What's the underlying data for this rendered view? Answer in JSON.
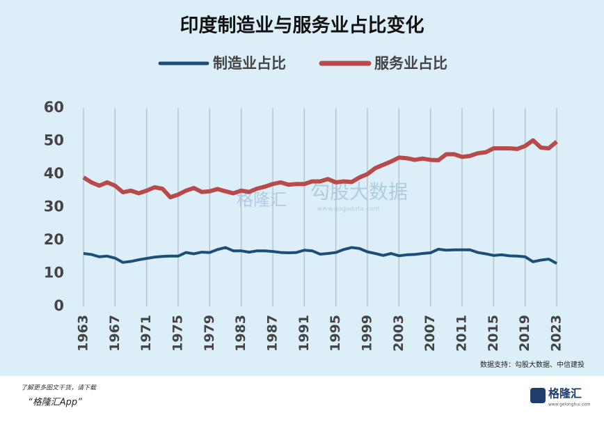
{
  "chart_data": {
    "type": "line",
    "title": "印度制造业与服务业占比变化",
    "x": [
      1963,
      1964,
      1965,
      1966,
      1967,
      1968,
      1969,
      1970,
      1971,
      1972,
      1973,
      1974,
      1975,
      1976,
      1977,
      1978,
      1979,
      1980,
      1981,
      1982,
      1983,
      1984,
      1985,
      1986,
      1987,
      1988,
      1989,
      1990,
      1991,
      1992,
      1993,
      1994,
      1995,
      1996,
      1997,
      1998,
      1999,
      2000,
      2001,
      2002,
      2003,
      2004,
      2005,
      2006,
      2007,
      2008,
      2009,
      2010,
      2011,
      2012,
      2013,
      2014,
      2015,
      2016,
      2017,
      2018,
      2019,
      2020,
      2021,
      2022,
      2023
    ],
    "series": [
      {
        "name": "制造业占比",
        "color": "#1b4f7a",
        "values": [
          16.0,
          15.7,
          15.0,
          15.2,
          14.6,
          13.3,
          13.6,
          14.1,
          14.5,
          14.9,
          15.1,
          15.2,
          15.2,
          16.3,
          15.9,
          16.4,
          16.3,
          17.2,
          17.8,
          16.8,
          16.8,
          16.4,
          16.8,
          16.8,
          16.6,
          16.3,
          16.2,
          16.3,
          17.0,
          16.8,
          15.8,
          16.0,
          16.3,
          17.2,
          17.8,
          17.5,
          16.5,
          16.0,
          15.4,
          16.0,
          15.3,
          15.6,
          15.7,
          16.0,
          16.2,
          17.3,
          17.0,
          17.1,
          17.1,
          17.1,
          16.3,
          15.9,
          15.4,
          15.6,
          15.3,
          15.2,
          15.0,
          13.5,
          14.0,
          14.3,
          13.0
        ]
      },
      {
        "name": "服务业占比",
        "color": "#b84a4a",
        "values": [
          39.0,
          37.5,
          36.5,
          37.5,
          36.5,
          34.5,
          35.0,
          34.2,
          35.0,
          36.0,
          35.6,
          33.0,
          33.8,
          35.0,
          35.8,
          34.6,
          34.8,
          35.5,
          34.8,
          34.2,
          35.0,
          34.6,
          35.6,
          36.2,
          37.0,
          37.5,
          36.8,
          37.0,
          37.0,
          37.8,
          37.8,
          38.5,
          37.5,
          37.8,
          37.6,
          39.0,
          40.0,
          41.8,
          42.8,
          43.8,
          45.0,
          44.8,
          44.3,
          44.7,
          44.3,
          44.2,
          46.0,
          46.0,
          45.2,
          45.5,
          46.3,
          46.6,
          47.8,
          47.8,
          47.8,
          47.6,
          48.5,
          50.2,
          48.0,
          47.8,
          49.8
        ]
      }
    ],
    "xlim": [
      1963,
      2023
    ],
    "xticks": [
      1963,
      1967,
      1971,
      1975,
      1979,
      1983,
      1987,
      1991,
      1995,
      1999,
      2003,
      2007,
      2011,
      2015,
      2019,
      2023
    ],
    "ylim": [
      0,
      60
    ],
    "yticks": [
      0,
      10,
      20,
      30,
      40,
      50,
      60
    ],
    "grid": "x",
    "legend": "top",
    "source": "数据支持：勾股大数据、中信建投",
    "watermarks": [
      "格隆汇",
      "勾股大数据",
      "www.gogudata.com"
    ],
    "footer": {
      "prompt": "了解更多图文干货，请下载",
      "app": "“格隆汇App”",
      "logo": "格隆汇",
      "logo_url": "www.gelonghui.com"
    }
  }
}
